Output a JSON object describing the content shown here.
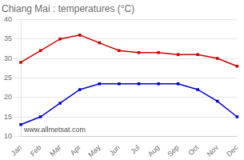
{
  "chart_data": {
    "type": "line",
    "title": "Chiang Mai : temperatures (°C)",
    "categories": [
      "Jan",
      "Feb",
      "Mar",
      "Apr",
      "May",
      "Jun",
      "Jul",
      "Aug",
      "Sep",
      "Oct",
      "Nov",
      "Dec"
    ],
    "series": [
      {
        "color": "#cc0000",
        "marker": "square",
        "values": [
          29,
          32,
          35,
          36,
          34,
          32,
          31.5,
          31.5,
          31,
          31,
          30,
          28
        ]
      },
      {
        "color": "#0000cc",
        "marker": "square",
        "values": [
          13,
          15,
          18.5,
          22,
          23.5,
          23.5,
          23.5,
          23.5,
          23.5,
          22,
          19,
          15
        ]
      }
    ],
    "ylim": [
      10,
      40
    ],
    "yticks": [
      10,
      15,
      20,
      25,
      30,
      35,
      40
    ],
    "grid": "y",
    "annotations": [
      "www.allmetsat.com"
    ]
  }
}
